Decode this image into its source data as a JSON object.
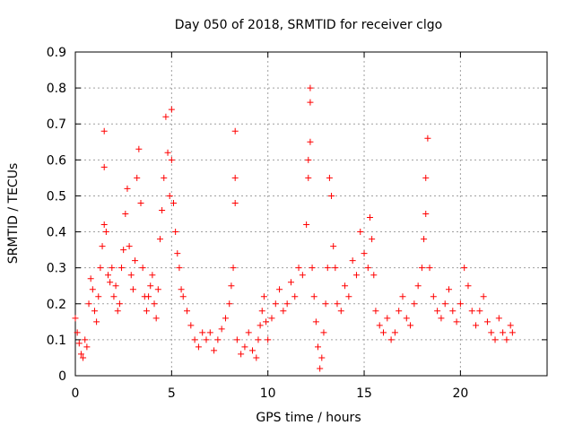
{
  "chart_data": {
    "type": "scatter",
    "title": "Day 050 of 2018, SRMTID for receiver clgo",
    "xlabel": "GPS time / hours",
    "ylabel": "SRMTID / TECUs",
    "xlim": [
      0,
      24.5
    ],
    "ylim": [
      0,
      0.9
    ],
    "xticks": [
      0,
      5,
      10,
      15,
      20
    ],
    "yticks": [
      0,
      0.1,
      0.2,
      0.3,
      0.4,
      0.5,
      0.6,
      0.7,
      0.8,
      0.9
    ],
    "xtick_labels": [
      "0",
      "5",
      "10",
      "15",
      "20"
    ],
    "ytick_labels": [
      "0",
      "0.1",
      "0.2",
      "0.3",
      "0.4",
      "0.5",
      "0.6",
      "0.7",
      "0.8",
      "0.9"
    ],
    "grid": true,
    "marker": "+",
    "color": "#ff0000",
    "series": [
      {
        "name": "SRMTID",
        "points": [
          [
            0.0,
            0.16
          ],
          [
            0.1,
            0.12
          ],
          [
            0.2,
            0.09
          ],
          [
            0.3,
            0.06
          ],
          [
            0.4,
            0.05
          ],
          [
            0.5,
            0.1
          ],
          [
            0.6,
            0.08
          ],
          [
            0.7,
            0.2
          ],
          [
            0.8,
            0.27
          ],
          [
            0.9,
            0.24
          ],
          [
            1.0,
            0.18
          ],
          [
            1.1,
            0.15
          ],
          [
            1.2,
            0.22
          ],
          [
            1.3,
            0.3
          ],
          [
            1.4,
            0.36
          ],
          [
            1.5,
            0.42
          ],
          [
            1.5,
            0.58
          ],
          [
            1.5,
            0.68
          ],
          [
            1.6,
            0.4
          ],
          [
            1.7,
            0.28
          ],
          [
            1.8,
            0.26
          ],
          [
            1.9,
            0.3
          ],
          [
            2.0,
            0.22
          ],
          [
            2.1,
            0.25
          ],
          [
            2.2,
            0.18
          ],
          [
            2.3,
            0.2
          ],
          [
            2.4,
            0.3
          ],
          [
            2.5,
            0.35
          ],
          [
            2.6,
            0.45
          ],
          [
            2.7,
            0.52
          ],
          [
            2.8,
            0.36
          ],
          [
            2.9,
            0.28
          ],
          [
            3.0,
            0.24
          ],
          [
            3.1,
            0.32
          ],
          [
            3.2,
            0.55
          ],
          [
            3.3,
            0.63
          ],
          [
            3.4,
            0.48
          ],
          [
            3.5,
            0.3
          ],
          [
            3.6,
            0.22
          ],
          [
            3.7,
            0.18
          ],
          [
            3.8,
            0.22
          ],
          [
            3.9,
            0.25
          ],
          [
            4.0,
            0.28
          ],
          [
            4.1,
            0.2
          ],
          [
            4.2,
            0.16
          ],
          [
            4.3,
            0.24
          ],
          [
            4.4,
            0.38
          ],
          [
            4.5,
            0.46
          ],
          [
            4.6,
            0.55
          ],
          [
            4.7,
            0.72
          ],
          [
            4.8,
            0.62
          ],
          [
            4.9,
            0.5
          ],
          [
            5.0,
            0.74
          ],
          [
            5.0,
            0.6
          ],
          [
            5.1,
            0.48
          ],
          [
            5.2,
            0.4
          ],
          [
            5.3,
            0.34
          ],
          [
            5.4,
            0.3
          ],
          [
            5.5,
            0.24
          ],
          [
            5.6,
            0.22
          ],
          [
            5.8,
            0.18
          ],
          [
            6.0,
            0.14
          ],
          [
            6.2,
            0.1
          ],
          [
            6.4,
            0.08
          ],
          [
            6.6,
            0.12
          ],
          [
            6.8,
            0.1
          ],
          [
            7.0,
            0.12
          ],
          [
            7.2,
            0.07
          ],
          [
            7.4,
            0.1
          ],
          [
            7.6,
            0.13
          ],
          [
            7.8,
            0.16
          ],
          [
            8.0,
            0.2
          ],
          [
            8.1,
            0.25
          ],
          [
            8.2,
            0.3
          ],
          [
            8.3,
            0.55
          ],
          [
            8.3,
            0.48
          ],
          [
            8.3,
            0.68
          ],
          [
            8.4,
            0.1
          ],
          [
            8.6,
            0.06
          ],
          [
            8.8,
            0.08
          ],
          [
            9.0,
            0.12
          ],
          [
            9.2,
            0.07
          ],
          [
            9.4,
            0.05
          ],
          [
            9.5,
            0.1
          ],
          [
            9.6,
            0.14
          ],
          [
            9.7,
            0.18
          ],
          [
            9.8,
            0.22
          ],
          [
            9.9,
            0.15
          ],
          [
            10.0,
            0.1
          ],
          [
            10.2,
            0.16
          ],
          [
            10.4,
            0.2
          ],
          [
            10.6,
            0.24
          ],
          [
            10.8,
            0.18
          ],
          [
            11.0,
            0.2
          ],
          [
            11.2,
            0.26
          ],
          [
            11.4,
            0.22
          ],
          [
            11.6,
            0.3
          ],
          [
            11.8,
            0.28
          ],
          [
            12.0,
            0.42
          ],
          [
            12.1,
            0.6
          ],
          [
            12.1,
            0.55
          ],
          [
            12.2,
            0.8
          ],
          [
            12.2,
            0.76
          ],
          [
            12.2,
            0.65
          ],
          [
            12.3,
            0.3
          ],
          [
            12.4,
            0.22
          ],
          [
            12.5,
            0.15
          ],
          [
            12.6,
            0.08
          ],
          [
            12.7,
            0.02
          ],
          [
            12.8,
            0.05
          ],
          [
            12.9,
            0.12
          ],
          [
            13.0,
            0.2
          ],
          [
            13.1,
            0.3
          ],
          [
            13.2,
            0.55
          ],
          [
            13.3,
            0.5
          ],
          [
            13.4,
            0.36
          ],
          [
            13.5,
            0.3
          ],
          [
            13.6,
            0.2
          ],
          [
            13.8,
            0.18
          ],
          [
            14.0,
            0.25
          ],
          [
            14.2,
            0.22
          ],
          [
            14.4,
            0.32
          ],
          [
            14.6,
            0.28
          ],
          [
            14.8,
            0.4
          ],
          [
            15.0,
            0.34
          ],
          [
            15.2,
            0.3
          ],
          [
            15.3,
            0.44
          ],
          [
            15.4,
            0.38
          ],
          [
            15.5,
            0.28
          ],
          [
            15.6,
            0.18
          ],
          [
            15.8,
            0.14
          ],
          [
            16.0,
            0.12
          ],
          [
            16.2,
            0.16
          ],
          [
            16.4,
            0.1
          ],
          [
            16.6,
            0.12
          ],
          [
            16.8,
            0.18
          ],
          [
            17.0,
            0.22
          ],
          [
            17.2,
            0.16
          ],
          [
            17.4,
            0.14
          ],
          [
            17.6,
            0.2
          ],
          [
            17.8,
            0.25
          ],
          [
            18.0,
            0.3
          ],
          [
            18.1,
            0.38
          ],
          [
            18.2,
            0.45
          ],
          [
            18.2,
            0.55
          ],
          [
            18.3,
            0.66
          ],
          [
            18.4,
            0.3
          ],
          [
            18.6,
            0.22
          ],
          [
            18.8,
            0.18
          ],
          [
            19.0,
            0.16
          ],
          [
            19.2,
            0.2
          ],
          [
            19.4,
            0.24
          ],
          [
            19.6,
            0.18
          ],
          [
            19.8,
            0.15
          ],
          [
            20.0,
            0.2
          ],
          [
            20.2,
            0.3
          ],
          [
            20.4,
            0.25
          ],
          [
            20.6,
            0.18
          ],
          [
            20.8,
            0.14
          ],
          [
            21.0,
            0.18
          ],
          [
            21.2,
            0.22
          ],
          [
            21.4,
            0.15
          ],
          [
            21.6,
            0.12
          ],
          [
            21.8,
            0.1
          ],
          [
            22.0,
            0.16
          ],
          [
            22.2,
            0.12
          ],
          [
            22.4,
            0.1
          ],
          [
            22.6,
            0.14
          ],
          [
            22.7,
            0.12
          ]
        ]
      }
    ]
  }
}
